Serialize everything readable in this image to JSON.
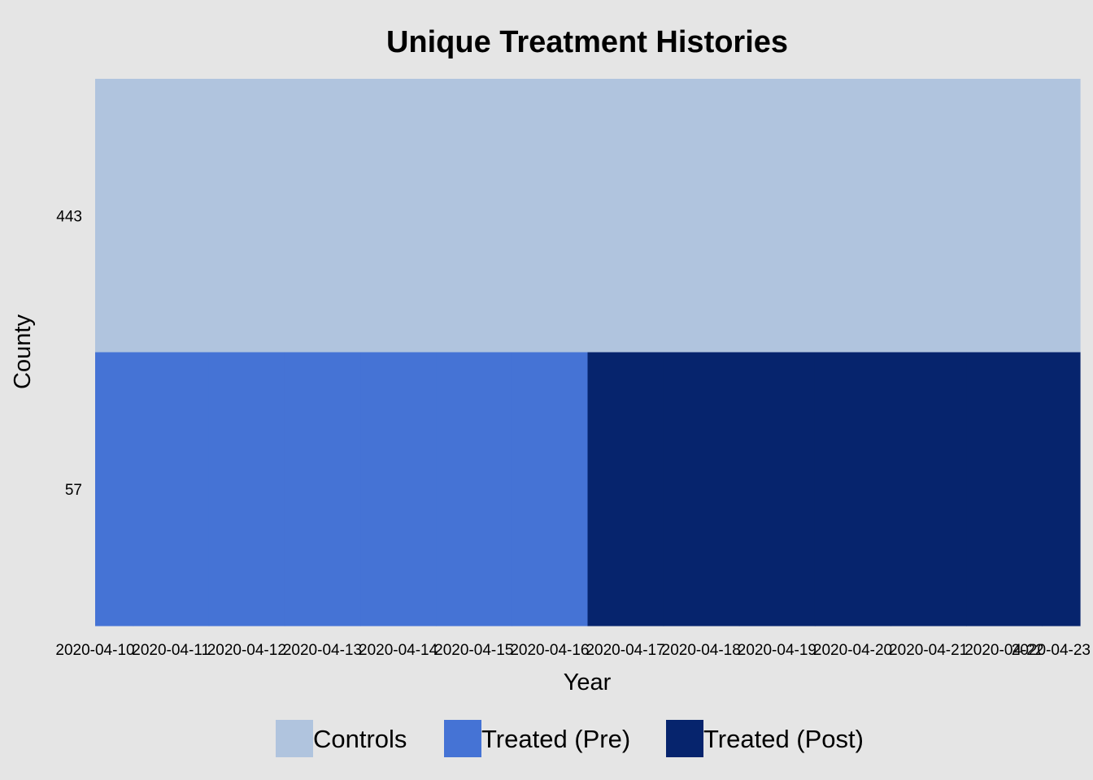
{
  "chart_data": {
    "type": "heatmap",
    "title": "Unique Treatment Histories",
    "xlabel": "Year",
    "ylabel": "County",
    "x": [
      "2020-04-10",
      "2020-04-11",
      "2020-04-12",
      "2020-04-13",
      "2020-04-14",
      "2020-04-15",
      "2020-04-16",
      "2020-04-17",
      "2020-04-18",
      "2020-04-19",
      "2020-04-20",
      "2020-04-21",
      "2020-04-22",
      "2020-04-23"
    ],
    "y": [
      "443",
      "57"
    ],
    "status_keys": [
      "controls",
      "pre",
      "post"
    ],
    "cells": [
      [
        "controls",
        "controls",
        "controls",
        "controls",
        "controls",
        "controls",
        "controls",
        "controls",
        "controls",
        "controls",
        "controls",
        "controls",
        "controls",
        "controls"
      ],
      [
        "pre",
        "pre",
        "pre",
        "pre",
        "pre",
        "pre",
        "pre",
        "post",
        "post",
        "post",
        "post",
        "post",
        "post",
        "post"
      ]
    ],
    "legend": [
      {
        "key": "controls",
        "label": "Controls",
        "color": "#b0c4de"
      },
      {
        "key": "pre",
        "label": "Treated (Pre)",
        "color": "#4573d5"
      },
      {
        "key": "post",
        "label": "Treated (Post)",
        "color": "#06246d"
      }
    ],
    "legend_position": "bottom",
    "grid": false
  },
  "colors": {
    "background": "#e5e5e5"
  }
}
